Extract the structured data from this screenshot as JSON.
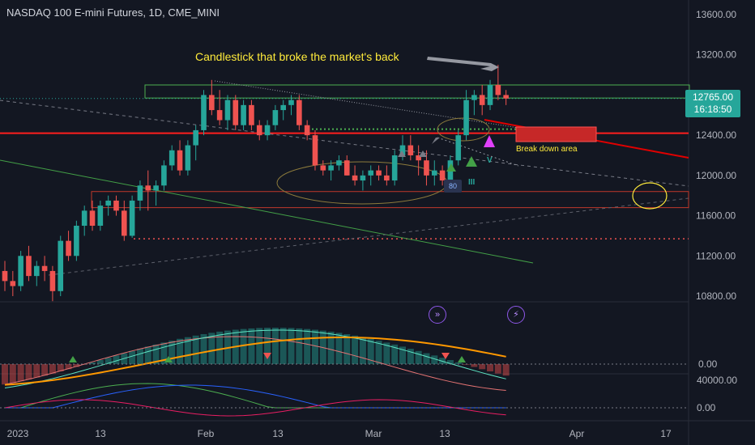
{
  "header": {
    "title": "NASDAQ 100 E-mini Futures, 1D, CME_MINI"
  },
  "annotations": {
    "main_note": "Candlestick that broke the market's back",
    "breakdown": "Break down area",
    "wave_v": "V",
    "wave_iii": "III",
    "badge_80": "80"
  },
  "last_price": {
    "price": "12765.00",
    "countdown": "16:18:50"
  },
  "icons": {
    "replay": "fast-forward-icon",
    "flash": "lightning-icon"
  },
  "colors": {
    "bull": "#26a69a",
    "bear": "#ef5350",
    "background": "#131722",
    "resistance": "#ff0000",
    "annotation": "#ffeb3b"
  },
  "chart_data": {
    "type": "candlestick",
    "title": "NASDAQ 100 E-mini Futures, 1D, CME_MINI",
    "price_axis": {
      "ylim": [
        10650,
        13800
      ],
      "ticks": [
        13600,
        13200,
        12800,
        12400,
        12000,
        11600,
        11200,
        10800
      ]
    },
    "date_axis_labels": [
      "2023",
      "13",
      "Feb",
      "13",
      "Mar",
      "13",
      "Apr",
      "17"
    ],
    "candles": [
      [
        11050,
        11150,
        10850,
        10950
      ],
      [
        10950,
        11050,
        10800,
        10900
      ],
      [
        10900,
        11250,
        10850,
        11200
      ],
      [
        11200,
        11300,
        10950,
        11000
      ],
      [
        11000,
        11150,
        10900,
        11100
      ],
      [
        11100,
        11200,
        10950,
        11050
      ],
      [
        11050,
        11100,
        10750,
        10850
      ],
      [
        10850,
        11400,
        10800,
        11350
      ],
      [
        11350,
        11450,
        11150,
        11200
      ],
      [
        11200,
        11550,
        11150,
        11500
      ],
      [
        11500,
        11700,
        11400,
        11650
      ],
      [
        11650,
        11750,
        11450,
        11500
      ],
      [
        11500,
        11750,
        11450,
        11700
      ],
      [
        11700,
        11800,
        11600,
        11750
      ],
      [
        11750,
        11800,
        11600,
        11650
      ],
      [
        11650,
        11750,
        11350,
        11400
      ],
      [
        11400,
        11800,
        11380,
        11750
      ],
      [
        11750,
        11950,
        11650,
        11900
      ],
      [
        11900,
        12050,
        11650,
        11850
      ],
      [
        11850,
        11950,
        11700,
        11900
      ],
      [
        11900,
        12150,
        11850,
        12100
      ],
      [
        12100,
        12300,
        12050,
        12250
      ],
      [
        12250,
        12350,
        12000,
        12050
      ],
      [
        12050,
        12350,
        12000,
        12300
      ],
      [
        12300,
        12500,
        12150,
        12450
      ],
      [
        12450,
        12850,
        12400,
        12800
      ],
      [
        12800,
        12950,
        12600,
        12650
      ],
      [
        12650,
        12850,
        12500,
        12550
      ],
      [
        12550,
        12800,
        12450,
        12750
      ],
      [
        12750,
        12800,
        12450,
        12500
      ],
      [
        12500,
        12750,
        12450,
        12700
      ],
      [
        12700,
        12750,
        12450,
        12500
      ],
      [
        12500,
        12550,
        12350,
        12400
      ],
      [
        12400,
        12550,
        12350,
        12500
      ],
      [
        12500,
        12700,
        12450,
        12650
      ],
      [
        12650,
        12750,
        12550,
        12700
      ],
      [
        12700,
        12800,
        12600,
        12750
      ],
      [
        12750,
        12800,
        12450,
        12500
      ],
      [
        12500,
        12550,
        12350,
        12400
      ],
      [
        12400,
        12450,
        12050,
        12100
      ],
      [
        12100,
        12150,
        12000,
        12050
      ],
      [
        12050,
        12150,
        11950,
        12100
      ],
      [
        12100,
        12200,
        12050,
        12150
      ],
      [
        12150,
        12200,
        12000,
        12000
      ],
      [
        12000,
        12100,
        11900,
        11950
      ],
      [
        11950,
        12050,
        11850,
        12000
      ],
      [
        12000,
        12100,
        11900,
        12050
      ],
      [
        12050,
        12100,
        11950,
        12000
      ],
      [
        12000,
        12100,
        11900,
        11950
      ],
      [
        11950,
        12250,
        11900,
        12200
      ],
      [
        12200,
        12400,
        12150,
        12300
      ],
      [
        12300,
        12400,
        12150,
        12200
      ],
      [
        12200,
        12300,
        12000,
        12150
      ],
      [
        12150,
        12250,
        11900,
        12000
      ],
      [
        12000,
        12150,
        11900,
        12050
      ],
      [
        12050,
        12100,
        11900,
        11950
      ],
      [
        11950,
        12200,
        11900,
        12150
      ],
      [
        12150,
        12450,
        12100,
        12400
      ],
      [
        12400,
        12850,
        12350,
        12750
      ],
      [
        12750,
        12850,
        12600,
        12800
      ],
      [
        12800,
        12900,
        12600,
        12700
      ],
      [
        12700,
        12950,
        12650,
        12900
      ],
      [
        12900,
        13100,
        12750,
        12800
      ],
      [
        12800,
        12850,
        12700,
        12765
      ]
    ],
    "levels": [
      {
        "name": "resistance zone",
        "from": 12770,
        "to": 12900
      },
      {
        "name": "red resistance line",
        "value": 12420
      },
      {
        "name": "support zone",
        "from": 11680,
        "to": 11840
      },
      {
        "name": "dotted support",
        "value": 11370
      },
      {
        "name": "green dotted level",
        "value": 12460
      }
    ],
    "macd_axis_ticks": [
      0
    ],
    "lower_axis_ticks": [
      40000,
      0
    ]
  }
}
